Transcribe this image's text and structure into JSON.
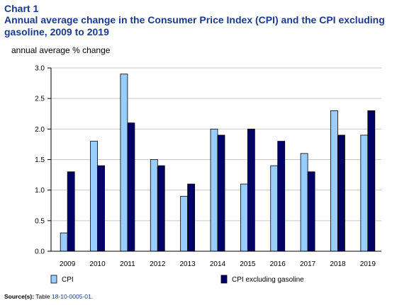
{
  "header": {
    "chart_label": "Chart 1",
    "title": "Annual average change in the Consumer Price Index (CPI) and the CPI excluding gasoline, 2009 to 2019"
  },
  "source": {
    "label": "Source(s):",
    "prefix": "Table",
    "link_text": "18-10-0005-01",
    "suffix": "."
  },
  "colors": {
    "cpi": "#99ccff",
    "cpi_ex_gas": "#000066"
  },
  "chart_data": {
    "type": "bar",
    "title": "Annual average change in the Consumer Price Index (CPI) and the CPI excluding gasoline, 2009 to 2019",
    "xlabel": "",
    "ylabel": "annual average % change",
    "categories": [
      "2009",
      "2010",
      "2011",
      "2012",
      "2013",
      "2014",
      "2015",
      "2016",
      "2017",
      "2018",
      "2019"
    ],
    "series": [
      {
        "name": "CPI",
        "values": [
          0.3,
          1.8,
          2.9,
          1.5,
          0.9,
          2.0,
          1.1,
          1.4,
          1.6,
          2.3,
          1.9
        ]
      },
      {
        "name": "CPI excluding gasoline",
        "values": [
          1.3,
          1.4,
          2.1,
          1.4,
          1.1,
          1.9,
          2.0,
          1.8,
          1.3,
          1.9,
          2.3
        ]
      }
    ],
    "ylim": [
      0,
      3.0
    ],
    "yticks": [
      "0.0",
      "0.5",
      "1.0",
      "1.5",
      "2.0",
      "2.5",
      "3.0"
    ],
    "grid": true,
    "legend_position": "bottom"
  }
}
